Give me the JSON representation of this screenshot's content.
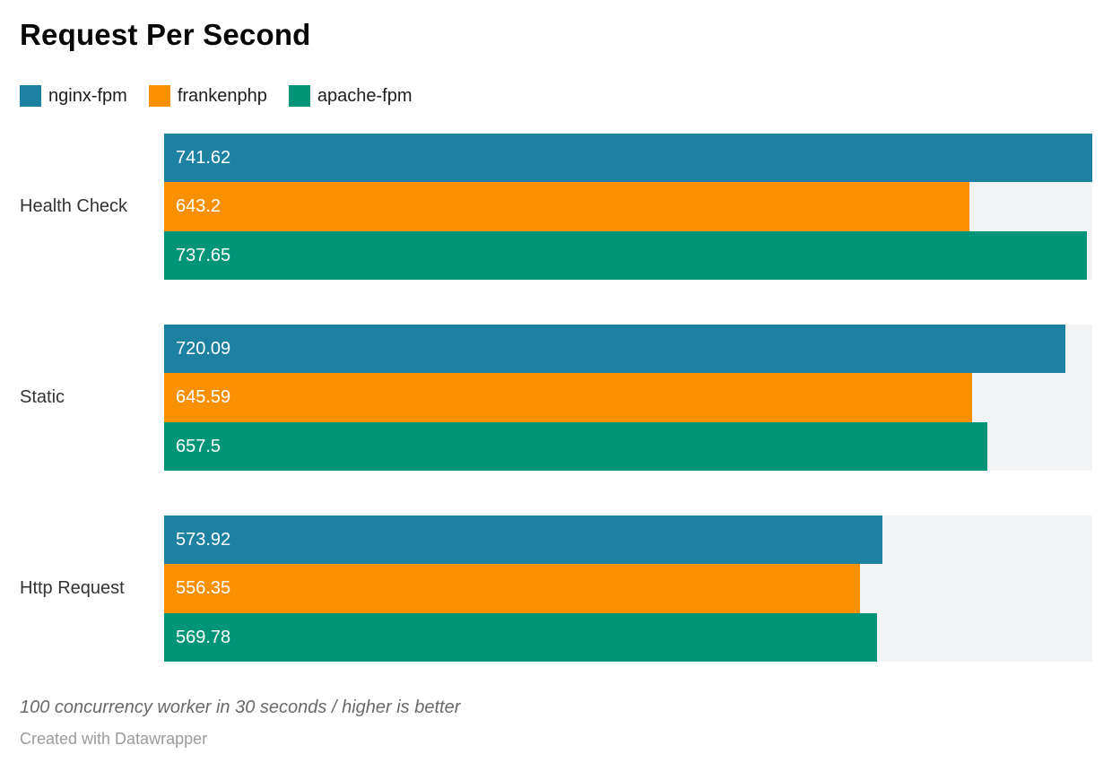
{
  "title": "Request Per Second",
  "colors": {
    "nginx_fpm": "#1d81a2",
    "frankenphp": "#f89000",
    "apache_fpm": "#009478",
    "bar_track": "#f2f3f4",
    "value_label": "#ffffff"
  },
  "legend": [
    {
      "label": "nginx-fpm",
      "color": "#1d81a2"
    },
    {
      "label": "frankenphp",
      "color": "#f89000"
    },
    {
      "label": "apache-fpm",
      "color": "#009478"
    }
  ],
  "chart_data": {
    "type": "bar",
    "orientation": "horizontal",
    "title": "Request Per Second",
    "xlabel": "",
    "ylabel": "",
    "categories": [
      "Health Check",
      "Static",
      "Http Request"
    ],
    "series": [
      {
        "name": "nginx-fpm",
        "color": "#1d81a2",
        "values": [
          741.62,
          720.09,
          573.92
        ]
      },
      {
        "name": "frankenphp",
        "color": "#f89000",
        "values": [
          643.2,
          645.59,
          556.35
        ]
      },
      {
        "name": "apache-fpm",
        "color": "#009478",
        "values": [
          737.65,
          657.5,
          569.78
        ]
      }
    ],
    "xmax": 741.62,
    "grid": false,
    "legend_position": "top",
    "value_labels_shown": true,
    "track_background": true
  },
  "footer": {
    "note": "100 concurrency worker in 30 seconds / higher is better",
    "credit": "Created with Datawrapper"
  }
}
